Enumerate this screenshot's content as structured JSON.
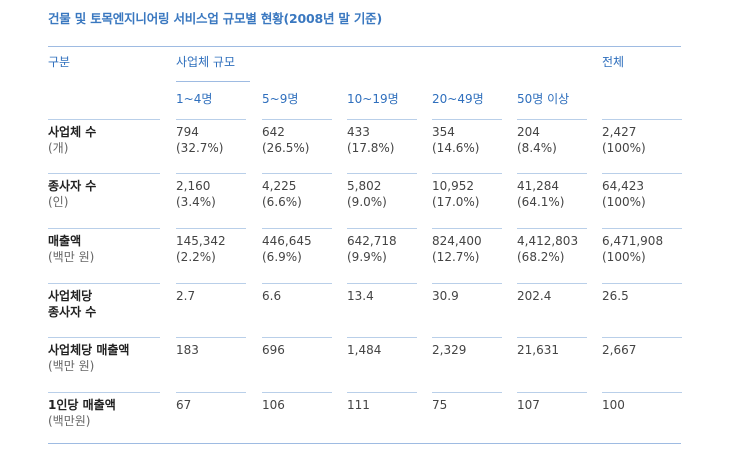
{
  "title": "건물 및 토목엔지니어링 서비스업 규모별 현황(2008년 말 기준)",
  "header": {
    "category": "구분",
    "group": "사업체 규모",
    "total": "전체",
    "sizes": [
      "1~4명",
      "5~9명",
      "10~19명",
      "20~49명",
      "50명 이상"
    ]
  },
  "rows": [
    {
      "label": "사업체 수",
      "unit": "(개)",
      "cells": [
        {
          "value": "794",
          "pct": "(32.7%)"
        },
        {
          "value": "642",
          "pct": "(26.5%)"
        },
        {
          "value": "433",
          "pct": "(17.8%)"
        },
        {
          "value": "354",
          "pct": "(14.6%)"
        },
        {
          "value": "204",
          "pct": "(8.4%)"
        },
        {
          "value": "2,427",
          "pct": "(100%)"
        }
      ]
    },
    {
      "label": "종사자 수",
      "unit": "(인)",
      "cells": [
        {
          "value": "2,160",
          "pct": "(3.4%)"
        },
        {
          "value": "4,225",
          "pct": "(6.6%)"
        },
        {
          "value": "5,802",
          "pct": "(9.0%)"
        },
        {
          "value": "10,952",
          "pct": "(17.0%)"
        },
        {
          "value": "41,284",
          "pct": "(64.1%)"
        },
        {
          "value": "64,423",
          "pct": "(100%)"
        }
      ]
    },
    {
      "label": "매출액",
      "unit": "(백만 원)",
      "cells": [
        {
          "value": "145,342",
          "pct": "(2.2%)"
        },
        {
          "value": "446,645",
          "pct": "(6.9%)"
        },
        {
          "value": "642,718",
          "pct": "(9.9%)"
        },
        {
          "value": "824,400",
          "pct": "(12.7%)"
        },
        {
          "value": "4,412,803",
          "pct": "(68.2%)"
        },
        {
          "value": "6,471,908",
          "pct": "(100%)"
        }
      ]
    },
    {
      "label": "사업체당",
      "label2": "종사자 수",
      "cells": [
        {
          "value": "2.7"
        },
        {
          "value": "6.6"
        },
        {
          "value": "13.4"
        },
        {
          "value": "30.9"
        },
        {
          "value": "202.4"
        },
        {
          "value": "26.5"
        }
      ]
    },
    {
      "label": "사업체당 매출액",
      "unit": "(백만 원)",
      "cells": [
        {
          "value": "183"
        },
        {
          "value": "696"
        },
        {
          "value": "1,484"
        },
        {
          "value": "2,329"
        },
        {
          "value": "21,631"
        },
        {
          "value": "2,667"
        }
      ]
    },
    {
      "label": "1인당 매출액",
      "unit": "(백만원)",
      "cells": [
        {
          "value": "67"
        },
        {
          "value": "106"
        },
        {
          "value": "111"
        },
        {
          "value": "75"
        },
        {
          "value": "107"
        },
        {
          "value": "100"
        }
      ]
    }
  ]
}
